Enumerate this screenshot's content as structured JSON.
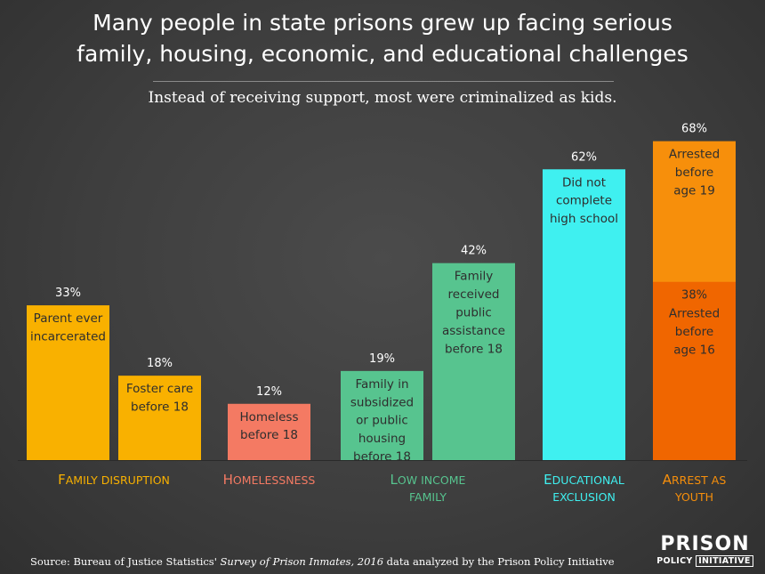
{
  "title_lines": [
    "Many people in state prisons grew up facing serious",
    "family, housing, economic, and educational challenges"
  ],
  "subtitle": "Instead of receiving support, most were criminalized as kids.",
  "source": {
    "prefix": "Source: Bureau of Justice Statistics' ",
    "italic": "Survey of Prison Inmates, 2016",
    "suffix": " data analyzed by the Prison Policy Initiative"
  },
  "logo": {
    "main": "PRISON",
    "sub_left": "POLICY",
    "sub_right": "INITIATIVE"
  },
  "colors": {
    "family": "#f9b100",
    "homelessness": "#f47a63",
    "income": "#57c48f",
    "education": "#3ff0f0",
    "arrest19": "#f78f0b",
    "arrest16": "#f06600",
    "category_family": "#f9b100",
    "category_homelessness": "#f47a63",
    "category_income": "#57c48f",
    "category_education": "#3ff0f0",
    "category_arrest": "#f78f0b",
    "bar_text": "#2e2e2e"
  },
  "chart_data": {
    "type": "bar",
    "title": "Many people in state prisons grew up facing serious family, housing, economic, and educational challenges",
    "subtitle": "Instead of receiving support, most were criminalized as kids.",
    "ylim": [
      0,
      70
    ],
    "unit": "%",
    "grid": false,
    "bars": [
      {
        "name": "parent-incarcerated",
        "value": 33,
        "label": "33%",
        "text": [
          "Parent ever",
          "incarcerated"
        ],
        "color_key": "family",
        "category": "family"
      },
      {
        "name": "foster-care",
        "value": 18,
        "label": "18%",
        "text": [
          "Foster care",
          "before 18"
        ],
        "color_key": "family",
        "category": "family"
      },
      {
        "name": "homeless",
        "value": 12,
        "label": "12%",
        "text": [
          "Homeless",
          "before 18"
        ],
        "color_key": "homelessness",
        "category": "homelessness"
      },
      {
        "name": "public-housing",
        "value": 19,
        "label": "19%",
        "text": [
          "Family in",
          "subsidized",
          "or public",
          "housing",
          "before 18"
        ],
        "color_key": "income",
        "category": "income"
      },
      {
        "name": "public-assistance",
        "value": 42,
        "label": "42%",
        "text": [
          "Family",
          "received",
          "public",
          "assistance",
          "before 18"
        ],
        "color_key": "income",
        "category": "income"
      },
      {
        "name": "no-high-school",
        "value": 62,
        "label": "62%",
        "text": [
          "Did not",
          "complete",
          "high school"
        ],
        "color_key": "education",
        "category": "education"
      },
      {
        "name": "arrested",
        "category": "arrest",
        "stacked": true,
        "segments": [
          {
            "name": "arrested-before-16",
            "value": 38,
            "label": "38%",
            "text": [
              "Arrested",
              "before",
              "age 16"
            ],
            "color_key": "arrest16"
          },
          {
            "name": "arrested-before-19",
            "value": 68,
            "label": "68%",
            "text": [
              "Arrested",
              "before",
              "age 19"
            ],
            "color_key": "arrest19"
          }
        ]
      }
    ],
    "categories": [
      {
        "key": "family",
        "lines": [
          "Family disruption"
        ]
      },
      {
        "key": "homelessness",
        "lines": [
          "Homelessness"
        ]
      },
      {
        "key": "income",
        "lines": [
          "Low income",
          "family"
        ]
      },
      {
        "key": "education",
        "lines": [
          "Educational",
          "exclusion"
        ]
      },
      {
        "key": "arrest",
        "lines": [
          "Arrest as",
          "youth"
        ]
      }
    ]
  }
}
